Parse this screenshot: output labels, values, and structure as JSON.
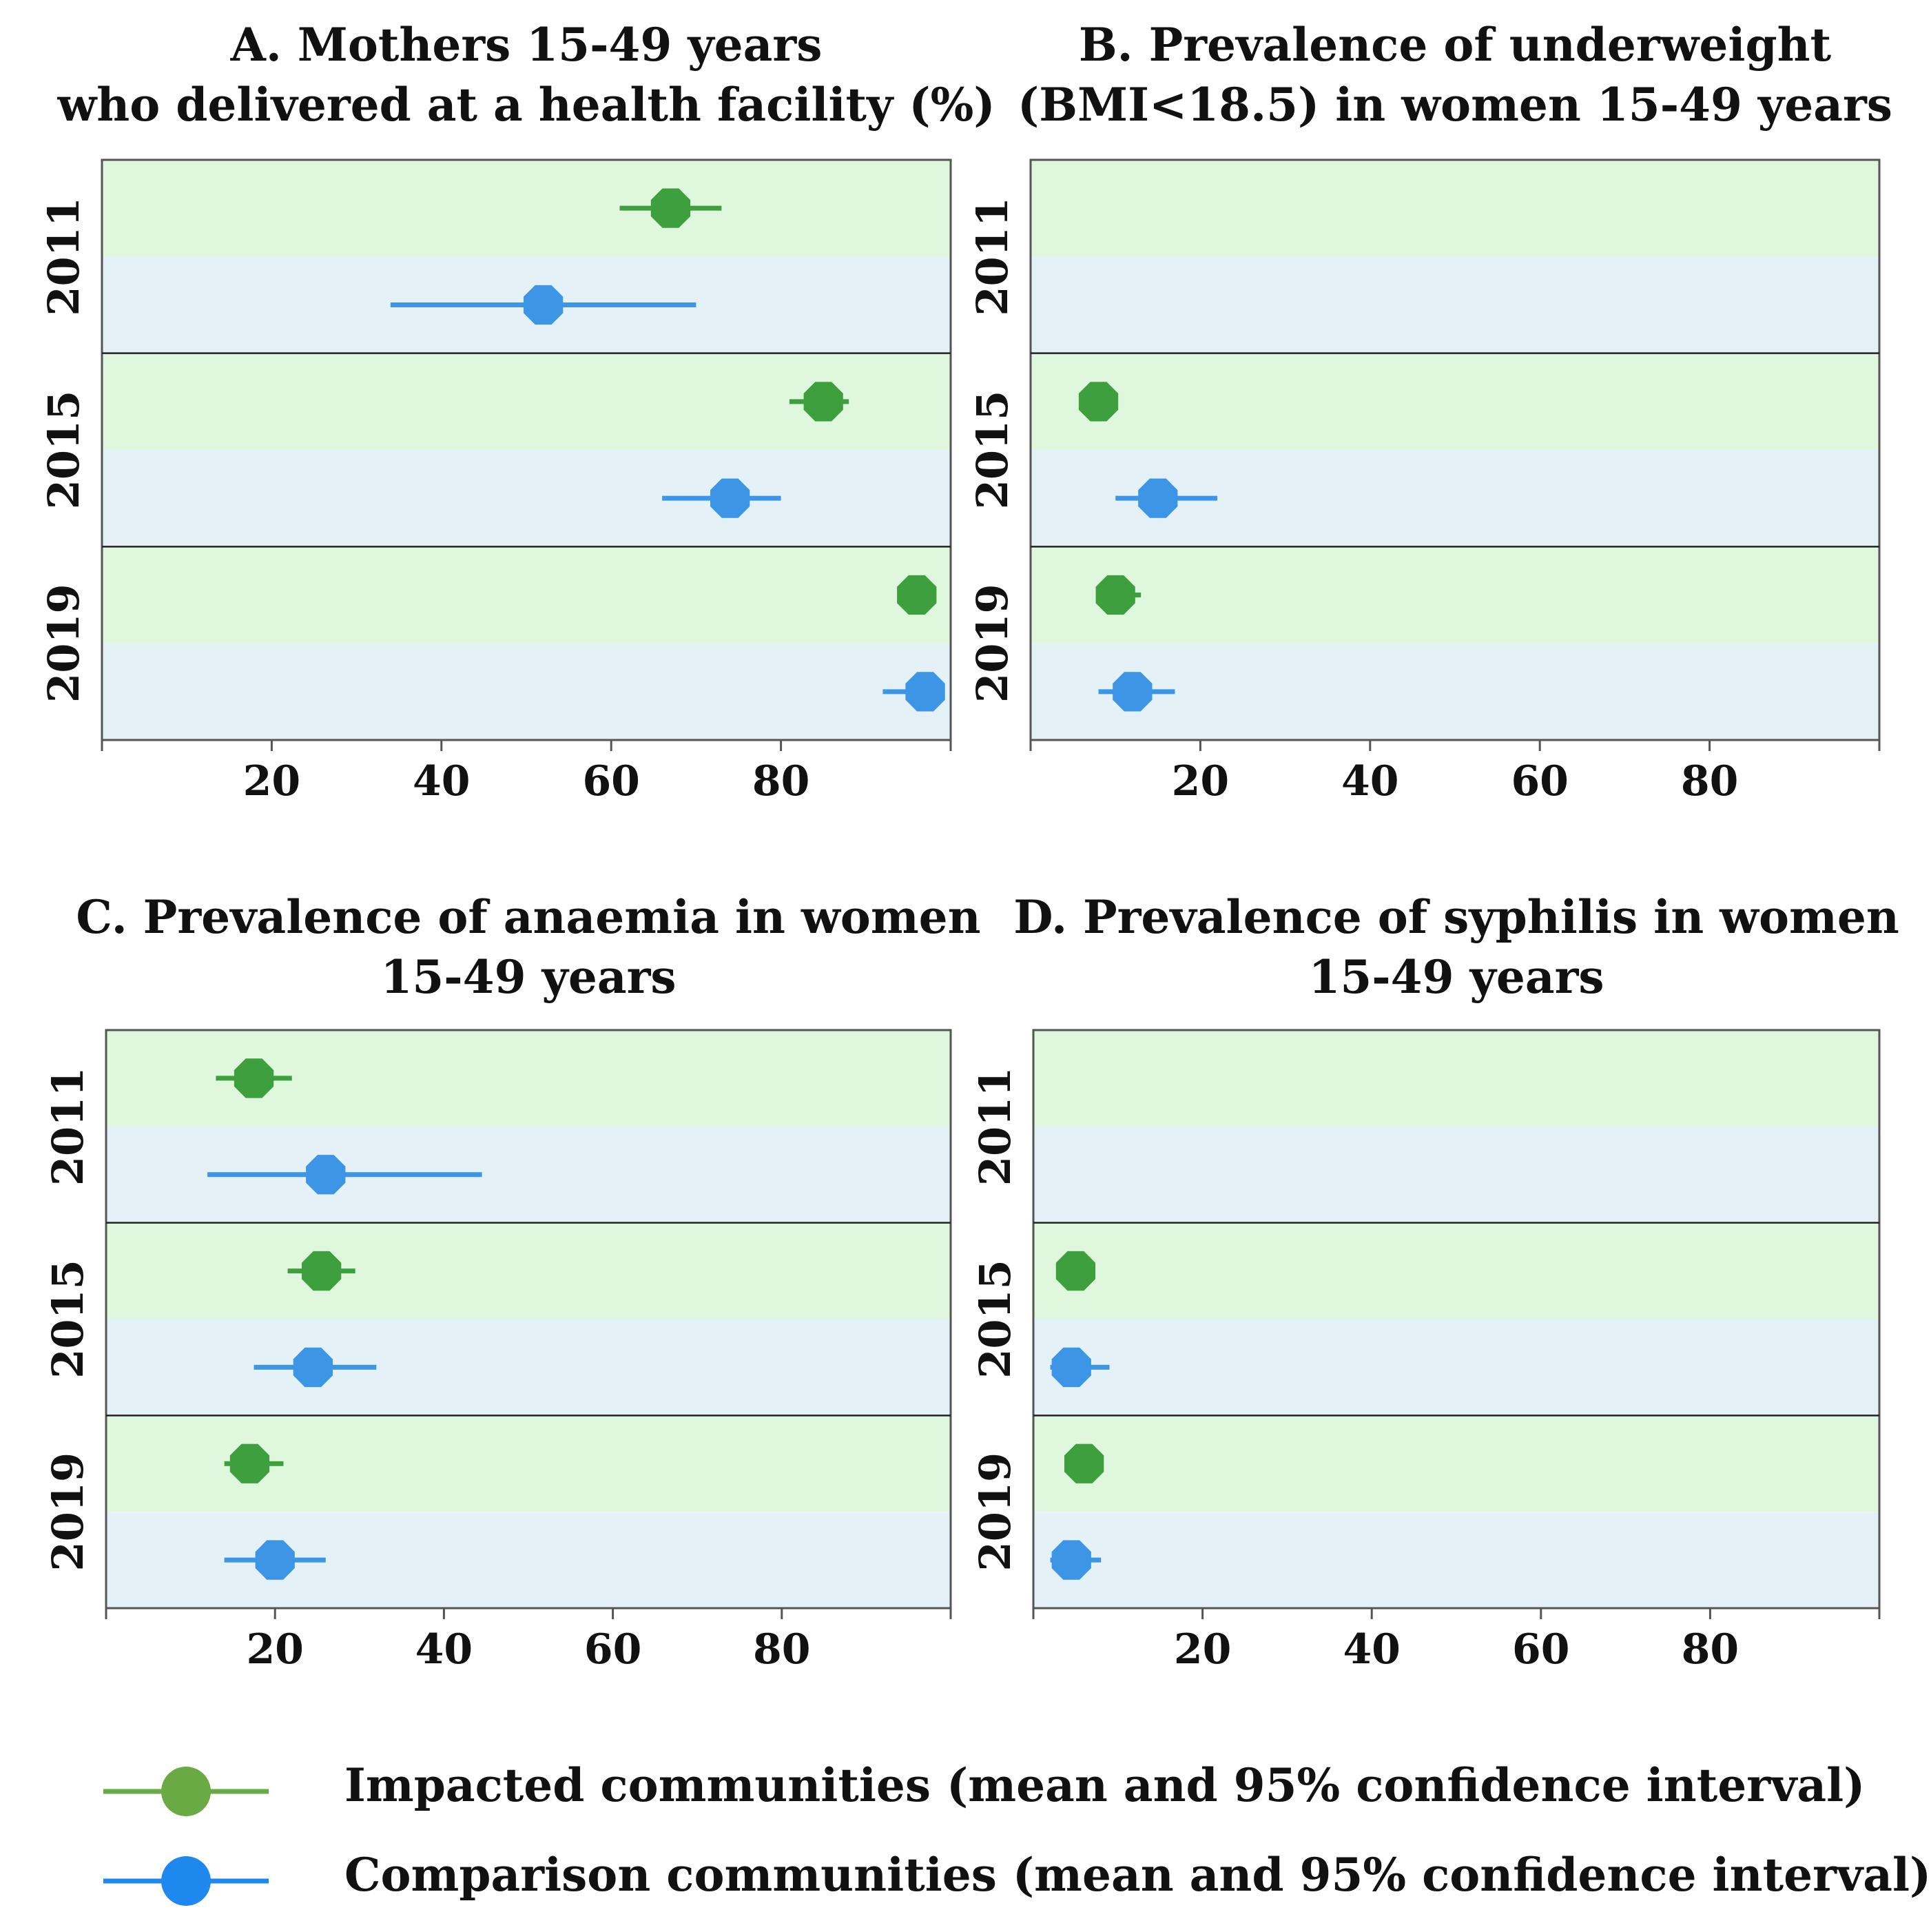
{
  "colors": {
    "impacted": "#3e9f3e",
    "comparison": "#3d95e6",
    "impacted_band": "#dff7dd",
    "comparison_band": "#e4f2f8",
    "axis": "#555555",
    "divider": "#222222",
    "legend_impacted": "#6aaa45",
    "legend_comparison": "#1e88ee"
  },
  "chart_data": [
    {
      "id": "A",
      "type": "scatter",
      "title_lines": [
        "A. Mothers 15-49 years",
        "who delivered at a health facility (%)"
      ],
      "years": [
        "2011",
        "2015",
        "2019"
      ],
      "xlim": [
        0,
        100
      ],
      "xticks": [
        20,
        40,
        60,
        80
      ],
      "series": [
        {
          "name": "Impacted communities",
          "points": [
            {
              "year": "2011",
              "mean": 67,
              "lo": 61,
              "hi": 73
            },
            {
              "year": "2015",
              "mean": 85,
              "lo": 81,
              "hi": 88
            },
            {
              "year": "2019",
              "mean": 96,
              "lo": 95,
              "hi": 97
            }
          ]
        },
        {
          "name": "Comparison communities",
          "points": [
            {
              "year": "2011",
              "mean": 52,
              "lo": 34,
              "hi": 70
            },
            {
              "year": "2015",
              "mean": 74,
              "lo": 66,
              "hi": 80
            },
            {
              "year": "2019",
              "mean": 97,
              "lo": 92,
              "hi": 99
            }
          ]
        }
      ]
    },
    {
      "id": "B",
      "type": "scatter",
      "title_lines": [
        "B. Prevalence of underweight",
        "(BMI<18.5) in women 15-49 years"
      ],
      "years": [
        "2011",
        "2015",
        "2019"
      ],
      "xlim": [
        0,
        100
      ],
      "xticks": [
        20,
        40,
        60,
        80
      ],
      "series": [
        {
          "name": "Impacted communities",
          "points": [
            {
              "year": "2015",
              "mean": 8,
              "lo": 6,
              "hi": 10
            },
            {
              "year": "2019",
              "mean": 10,
              "lo": 8,
              "hi": 13
            }
          ]
        },
        {
          "name": "Comparison communities",
          "points": [
            {
              "year": "2015",
              "mean": 15,
              "lo": 10,
              "hi": 22
            },
            {
              "year": "2019",
              "mean": 12,
              "lo": 8,
              "hi": 17
            }
          ]
        }
      ]
    },
    {
      "id": "C",
      "type": "scatter",
      "title_lines": [
        "C. Prevalence of anaemia in women",
        "15-49 years"
      ],
      "years": [
        "2011",
        "2015",
        "2019"
      ],
      "xlim": [
        0,
        100
      ],
      "xticks": [
        20,
        40,
        60,
        80
      ],
      "series": [
        {
          "name": "Impacted communities",
          "points": [
            {
              "year": "2011",
              "mean": 17.5,
              "lo": 13,
              "hi": 22
            },
            {
              "year": "2015",
              "mean": 25.5,
              "lo": 21.5,
              "hi": 29.5
            },
            {
              "year": "2019",
              "mean": 17,
              "lo": 14,
              "hi": 21
            }
          ]
        },
        {
          "name": "Comparison communities",
          "points": [
            {
              "year": "2011",
              "mean": 26,
              "lo": 12,
              "hi": 44.5
            },
            {
              "year": "2015",
              "mean": 24.5,
              "lo": 17.5,
              "hi": 32
            },
            {
              "year": "2019",
              "mean": 20,
              "lo": 14,
              "hi": 26
            }
          ]
        }
      ]
    },
    {
      "id": "D",
      "type": "scatter",
      "title_lines": [
        "D. Prevalence of syphilis in women",
        "15-49 years"
      ],
      "years": [
        "2011",
        "2015",
        "2019"
      ],
      "xlim": [
        0,
        100
      ],
      "xticks": [
        20,
        40,
        60,
        80
      ],
      "series": [
        {
          "name": "Impacted communities",
          "points": [
            {
              "year": "2015",
              "mean": 5,
              "lo": 4,
              "hi": 6
            },
            {
              "year": "2019",
              "mean": 6,
              "lo": 5,
              "hi": 7
            }
          ]
        },
        {
          "name": "Comparison communities",
          "points": [
            {
              "year": "2015",
              "mean": 4.5,
              "lo": 2,
              "hi": 9
            },
            {
              "year": "2019",
              "mean": 4.5,
              "lo": 2,
              "hi": 8
            }
          ]
        }
      ]
    }
  ],
  "legend": {
    "impacted": "Impacted communities (mean and 95% confidence interval)",
    "comparison": "Comparison communities (mean and 95% confidence interval)"
  }
}
